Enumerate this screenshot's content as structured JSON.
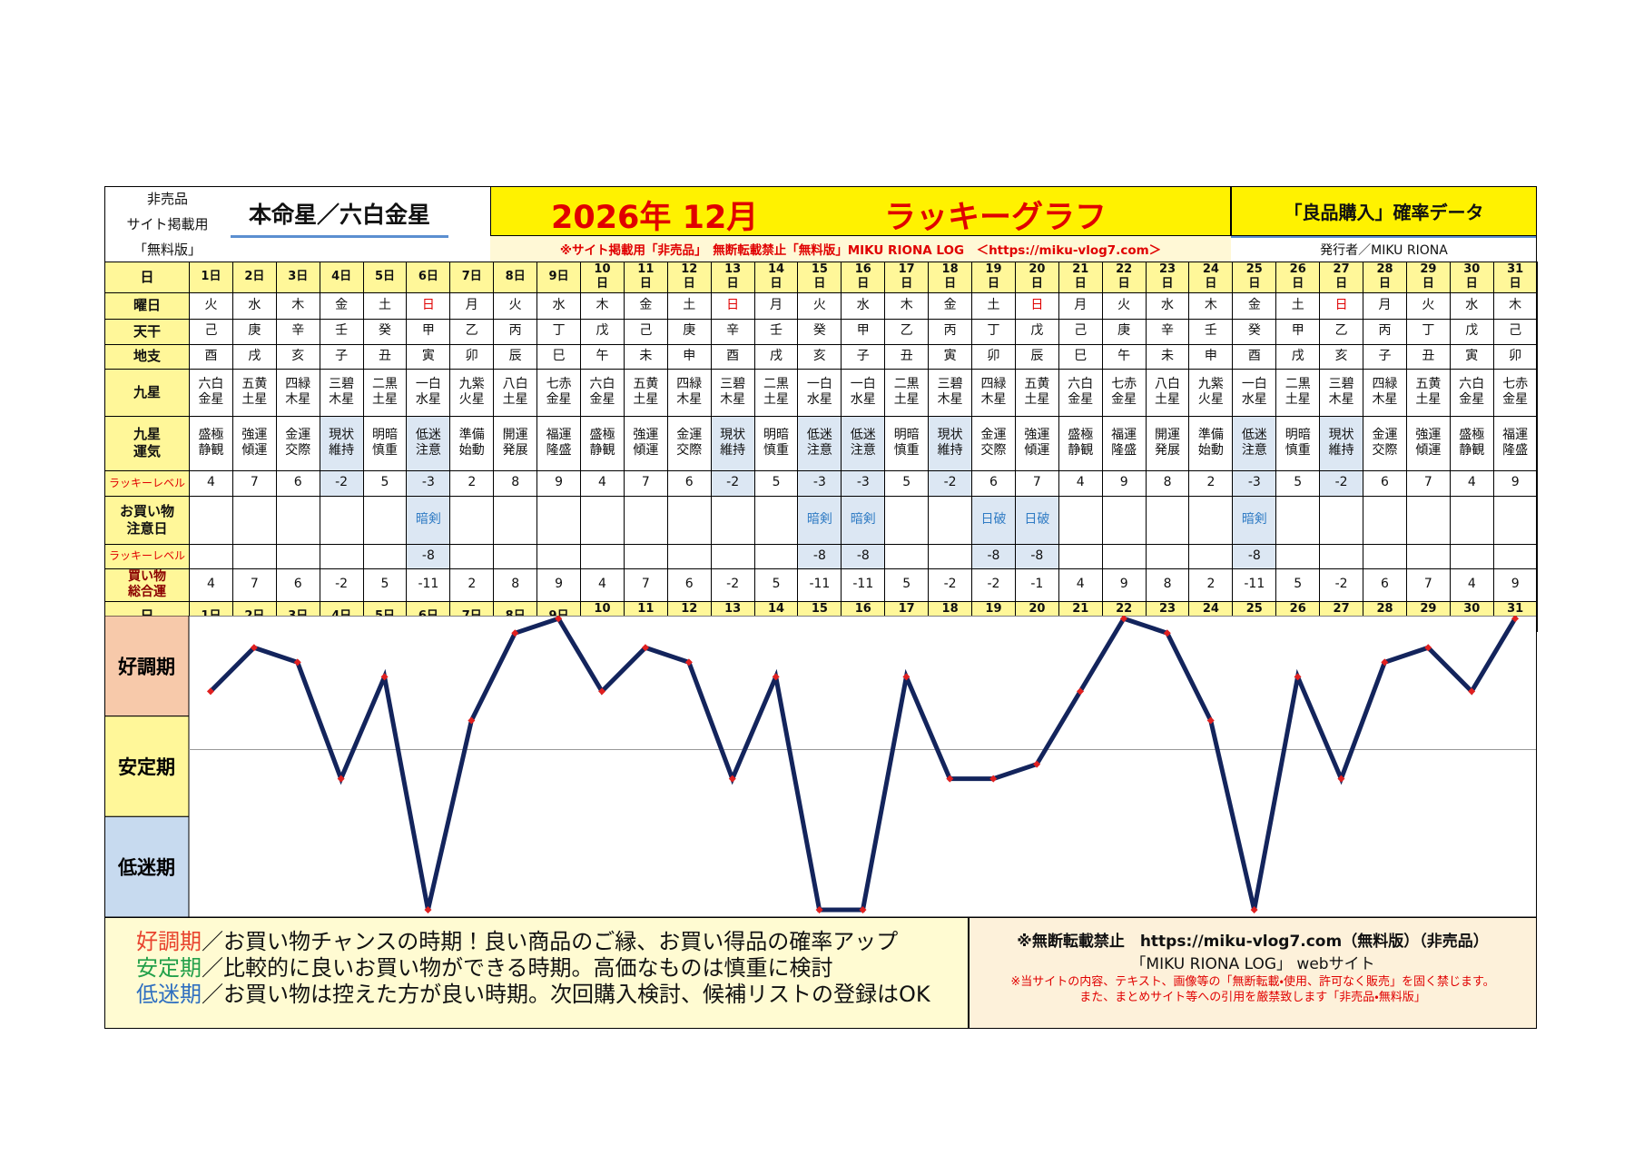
{
  "header": {
    "notes": [
      "非売品",
      "サイト掲載用",
      "「無料版」"
    ],
    "honmeisei": "本命星／六白金星",
    "year_month": "2026年 12月",
    "title": "ラッキーグラフ",
    "subtitle": "「良品購入」確率データ",
    "notice": "※サイト掲載用「非売品」　無断転載禁止「無料版」MIKU RIONA LOG　＜https://miku-vlog7.com＞",
    "publisher": "発行者／MIKU RIONA"
  },
  "table": {
    "row_labels": [
      "日",
      "曜日",
      "天干",
      "地支",
      "九星",
      "九星運気",
      "ラッキーレベル",
      "お買い物注意日",
      "ラッキーレベル",
      "買い物総合運"
    ],
    "days": [
      "1日",
      "2日",
      "3日",
      "4日",
      "5日",
      "6日",
      "7日",
      "8日",
      "9日",
      "10日",
      "11日",
      "12日",
      "13日",
      "14日",
      "15日",
      "16日",
      "17日",
      "18日",
      "19日",
      "20日",
      "21日",
      "22日",
      "23日",
      "24日",
      "25日",
      "26日",
      "27日",
      "28日",
      "29日",
      "30日",
      "31日"
    ],
    "weekdays": [
      "火",
      "水",
      "木",
      "金",
      "土",
      "日",
      "月",
      "火",
      "水",
      "木",
      "金",
      "土",
      "日",
      "月",
      "火",
      "水",
      "木",
      "金",
      "土",
      "日",
      "月",
      "火",
      "水",
      "木",
      "金",
      "土",
      "日",
      "月",
      "火",
      "水",
      "木"
    ],
    "stems": [
      "己",
      "庚",
      "辛",
      "壬",
      "癸",
      "甲",
      "乙",
      "丙",
      "丁",
      "戊",
      "己",
      "庚",
      "辛",
      "壬",
      "癸",
      "甲",
      "乙",
      "丙",
      "丁",
      "戊",
      "己",
      "庚",
      "辛",
      "壬",
      "癸",
      "甲",
      "乙",
      "丙",
      "丁",
      "戊",
      "己"
    ],
    "branches": [
      "酉",
      "戌",
      "亥",
      "子",
      "丑",
      "寅",
      "卯",
      "辰",
      "巳",
      "午",
      "未",
      "申",
      "酉",
      "戌",
      "亥",
      "子",
      "丑",
      "寅",
      "卯",
      "辰",
      "巳",
      "午",
      "未",
      "申",
      "酉",
      "戌",
      "亥",
      "子",
      "丑",
      "寅",
      "卯"
    ],
    "stars": [
      "六白金星",
      "五黄土星",
      "四緑木星",
      "三碧木星",
      "二黒土星",
      "一白水星",
      "九紫火星",
      "八白土星",
      "七赤金星",
      "六白金星",
      "五黄土星",
      "四緑木星",
      "三碧木星",
      "二黒土星",
      "一白水星",
      "一白水星",
      "二黒土星",
      "三碧木星",
      "四緑木星",
      "五黄土星",
      "六白金星",
      "七赤金星",
      "八白土星",
      "九紫火星",
      "一白水星",
      "二黒土星",
      "三碧木星",
      "四緑木星",
      "五黄土星",
      "六白金星",
      "七赤金星"
    ],
    "fortunes": [
      "盛極静観",
      "強運傾運",
      "金運交際",
      "現状維持",
      "明暗慎重",
      "低迷注意",
      "準備始動",
      "開運発展",
      "福運隆盛",
      "盛極静観",
      "強運傾運",
      "金運交際",
      "現状維持",
      "明暗慎重",
      "低迷注意",
      "低迷注意",
      "明暗慎重",
      "現状維持",
      "金運交際",
      "強運傾運",
      "盛極静観",
      "福運隆盛",
      "開運発展",
      "準備始動",
      "低迷注意",
      "明暗慎重",
      "現状維持",
      "金運交際",
      "強運傾運",
      "盛極静観",
      "福運隆盛"
    ],
    "lucky_levels": [
      4,
      7,
      6,
      -2,
      5,
      -3,
      2,
      8,
      9,
      4,
      7,
      6,
      -2,
      5,
      -3,
      -3,
      5,
      -2,
      6,
      7,
      4,
      9,
      8,
      2,
      -3,
      5,
      -2,
      6,
      7,
      4,
      9
    ],
    "caution_days": [
      null,
      null,
      null,
      null,
      null,
      "暗剣",
      null,
      null,
      null,
      null,
      null,
      null,
      null,
      null,
      "暗剣",
      "暗剣",
      null,
      null,
      "日破",
      "日破",
      null,
      null,
      null,
      null,
      "暗剣",
      null,
      null,
      null,
      null,
      null,
      null
    ],
    "caution_levels": [
      null,
      null,
      null,
      null,
      null,
      -8,
      null,
      null,
      null,
      null,
      null,
      null,
      null,
      null,
      -8,
      -8,
      null,
      null,
      -8,
      -8,
      null,
      null,
      null,
      null,
      -8,
      null,
      null,
      null,
      null,
      null,
      null
    ],
    "total": [
      4,
      7,
      6,
      -2,
      5,
      -11,
      2,
      8,
      9,
      4,
      7,
      6,
      -2,
      5,
      -11,
      -11,
      5,
      -2,
      -2,
      -1,
      4,
      9,
      8,
      2,
      -11,
      5,
      -2,
      6,
      7,
      4,
      9
    ],
    "label_bg": "#fff799",
    "highlight_color": "#dce7f3",
    "caution_color": "#2f7bc4",
    "red": "#e00000",
    "level_label_color": "#e00000",
    "total_label_color": "#8b0000"
  },
  "chart": {
    "bands": [
      {
        "label": "好調期",
        "color": "#f7c9aa"
      },
      {
        "label": "安定期",
        "color": "#fff799"
      },
      {
        "label": "低迷期",
        "color": "#c7daef"
      }
    ],
    "ylim": [
      -11.5,
      9.2
    ],
    "yticks": [
      0
    ],
    "line_color": "#13245c",
    "point_color": "#e02020"
  },
  "footer": {
    "legend": [
      {
        "term": "好調期",
        "text": "／お買い物チャンスの時期！良い商品のご縁、お買い得品の確率アップ",
        "color": "#e8432e"
      },
      {
        "term": "安定期",
        "text": "／比較的に良いお買い物ができる時期。高価なものは慎重に検討",
        "color": "#23a04a"
      },
      {
        "term": "低迷期",
        "text": "／お買い物は控えた方が良い時期。次回購入検討、候補リストの登録はOK",
        "color": "#2f6fc0"
      }
    ],
    "copyright": [
      "※無断転載禁止　https://miku-vlog7.com（無料版）（非売品）",
      "「MIKU RIONA LOG」 webサイト"
    ],
    "warnings": [
      "※当サイトの内容、テキスト、画像等の「無断転載・使用、許可なく販売」を固く禁じます。",
      "また、まとめサイト等への引用を厳禁致します「非売品・無料版」"
    ]
  }
}
